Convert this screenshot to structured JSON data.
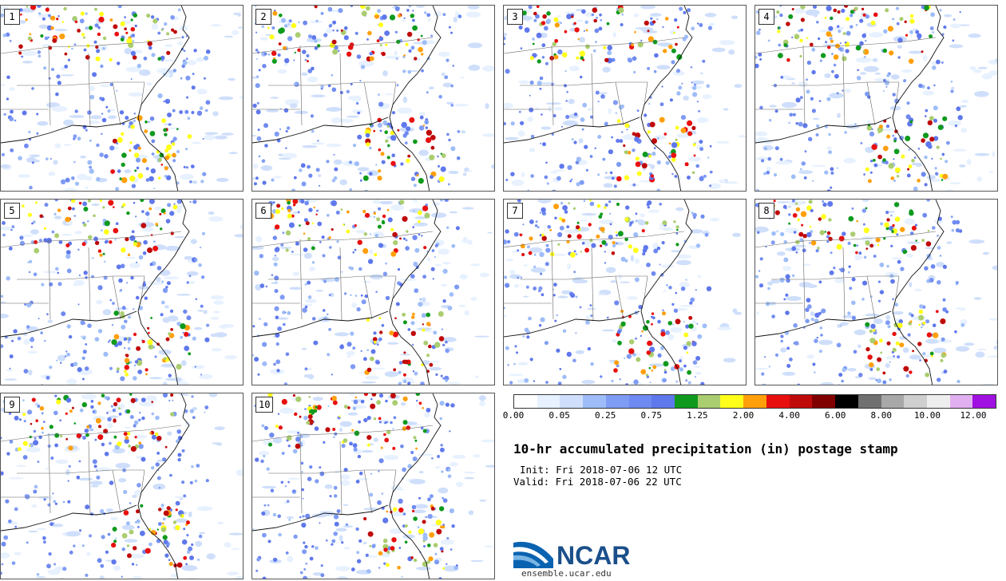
{
  "panels": [
    "1",
    "2",
    "3",
    "4",
    "5",
    "6",
    "7",
    "8",
    "9",
    "10"
  ],
  "colorbar": {
    "colors": [
      "#ffffff",
      "#e7f1ff",
      "#cfdffb",
      "#9ebdf8",
      "#7f9cf4",
      "#6f8af0",
      "#5f78ec",
      "#0f9a1d",
      "#aacd6f",
      "#ffff1a",
      "#ff9f0a",
      "#e80f0f",
      "#c00a0a",
      "#800000",
      "#000000",
      "#707070",
      "#a8a8a8",
      "#cfcfcf",
      "#eeeeee",
      "#e1b0f0",
      "#a010e0"
    ],
    "tick_labels": [
      "0.00",
      "0.05",
      "0.25",
      "0.75",
      "1.25",
      "2.00",
      "4.00",
      "6.00",
      "8.00",
      "10.00",
      "12.00"
    ]
  },
  "title": "10-hr accumulated precipitation (in) postage stamp",
  "init": "Init: Fri 2018-07-06 12 UTC",
  "valid": "Valid: Fri 2018-07-06 22 UTC",
  "logo": {
    "name": "NCAR",
    "url": "ensemble.ucar.edu"
  }
}
